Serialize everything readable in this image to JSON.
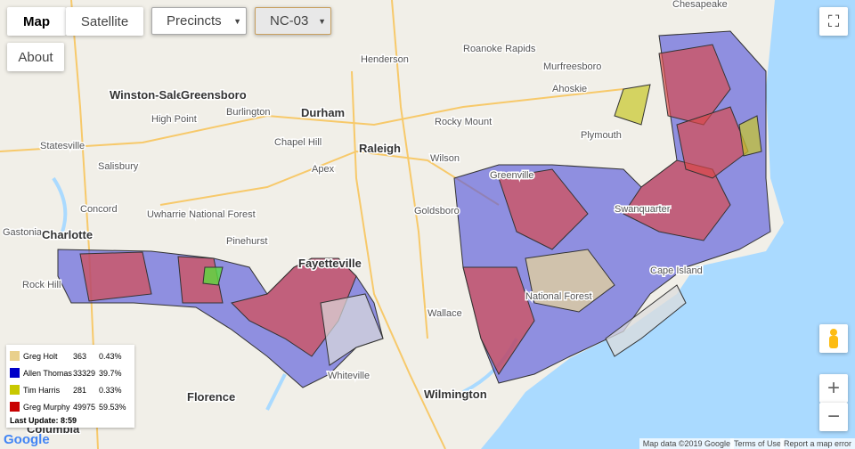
{
  "controls": {
    "map_types": [
      "Map",
      "Satellite"
    ],
    "layer_select": "Precincts",
    "district_select": "NC-03",
    "about": "About"
  },
  "legend": {
    "rows": [
      {
        "name": "Greg Holt",
        "votes": 363,
        "percent": "0.43%",
        "color": "#e9d08c"
      },
      {
        "name": "Allen Thomas",
        "votes": 33329,
        "percent": "39.7%",
        "color": "#0000c8"
      },
      {
        "name": "Tim Harris",
        "votes": 281,
        "percent": "0.33%",
        "color": "#c8c800"
      },
      {
        "name": "Greg Murphy",
        "votes": 49975,
        "percent": "59.53%",
        "color": "#c80000"
      }
    ],
    "last_update": "Last Update: 8:59"
  },
  "map_labels": [
    "Chesapeake",
    "Roanoke Rapids",
    "Murfreesboro",
    "Henderson",
    "Ahoskie",
    "Winston-Salem",
    "Greensboro",
    "High Point",
    "Burlington",
    "Durham",
    "Rocky Mount",
    "Chapel Hill",
    "Raleigh",
    "Plymouth",
    "Statesville",
    "Salisbury",
    "Wilson",
    "Apex",
    "Greenville",
    "Goldsboro",
    "Concord",
    "Uwharrie National Forest",
    "Gastonia",
    "Charlotte",
    "Pinehurst",
    "Fayetteville",
    "Rock Hill",
    "Wallace",
    "Whiteville",
    "Wilmington",
    "Florence",
    "Columbia",
    "Swanquarter",
    "Cape Island",
    "National Forest"
  ],
  "footer": {
    "logo": "Google",
    "attribution": "Map data ©2019 Google",
    "terms": "Terms of Use",
    "report": "Report a map error"
  },
  "zoom": {
    "in": "+",
    "out": "−"
  }
}
